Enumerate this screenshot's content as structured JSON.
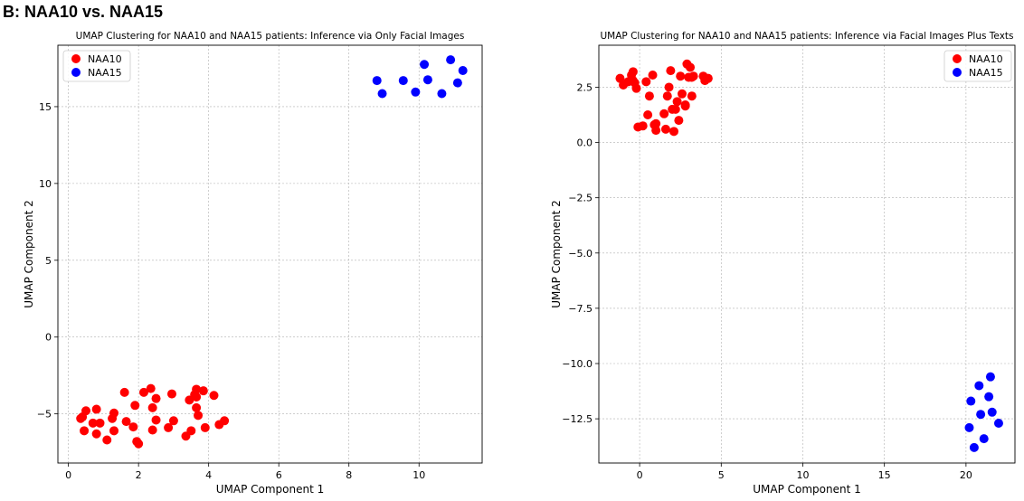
{
  "panel_label": "B: NAA10 vs. NAA15",
  "colors": {
    "NAA10": "#ff0000",
    "NAA15": "#0000ff",
    "grid": "#b0b0b0"
  },
  "chart_data": [
    {
      "type": "scatter",
      "title": "UMAP Clustering for NAA10 and NAA15 patients: Inference via Only Facial Images",
      "xlabel": "UMAP Component 1",
      "ylabel": "UMAP Component 2",
      "xlim": [
        -0.3,
        11.8
      ],
      "ylim": [
        -8.2,
        19.0
      ],
      "xticks": [
        0,
        2,
        4,
        6,
        8,
        10
      ],
      "yticks": [
        -5,
        0,
        5,
        10,
        15
      ],
      "grid": true,
      "legend": "top-left",
      "series": [
        {
          "name": "NAA10",
          "x": [
            0.35,
            0.4,
            0.5,
            0.45,
            0.7,
            0.8,
            0.9,
            0.8,
            1.1,
            1.3,
            1.25,
            1.3,
            1.6,
            1.65,
            1.9,
            1.85,
            1.95,
            2.0,
            2.15,
            2.35,
            2.4,
            2.4,
            2.5,
            2.5,
            2.85,
            2.95,
            3.0,
            3.35,
            3.45,
            3.5,
            3.6,
            3.65,
            3.7,
            3.65,
            3.65,
            3.85,
            3.9,
            4.15,
            4.3,
            4.45
          ],
          "y": [
            -5.3,
            -5.2,
            -4.8,
            -6.1,
            -5.6,
            -4.7,
            -5.6,
            -6.3,
            -6.7,
            -4.95,
            -5.3,
            -6.1,
            -3.6,
            -5.5,
            -4.45,
            -5.85,
            -6.8,
            -6.95,
            -3.6,
            -3.35,
            -4.6,
            -6.05,
            -5.4,
            -4.0,
            -5.9,
            -3.7,
            -5.45,
            -6.45,
            -4.1,
            -6.1,
            -3.75,
            -3.4,
            -5.1,
            -4.6,
            -3.9,
            -3.5,
            -5.9,
            -3.8,
            -5.7,
            -5.45
          ]
        },
        {
          "name": "NAA15",
          "x": [
            8.8,
            8.95,
            9.55,
            9.9,
            10.15,
            10.25,
            10.65,
            10.9,
            11.1,
            11.25
          ],
          "y": [
            16.7,
            15.85,
            16.7,
            15.95,
            17.75,
            16.75,
            15.85,
            18.05,
            16.55,
            17.35
          ]
        }
      ]
    },
    {
      "type": "scatter",
      "title": "UMAP Clustering for NAA10 and NAA15 patients: Inference via Facial Images Plus Texts",
      "xlabel": "UMAP Component 1",
      "ylabel": "UMAP Component 2",
      "xlim": [
        -2.5,
        23.0
      ],
      "ylim": [
        -14.5,
        4.4
      ],
      "xticks": [
        0,
        5,
        10,
        15,
        20
      ],
      "yticks": [
        -12.5,
        -10.0,
        -7.5,
        -5.0,
        -2.5,
        0.0,
        2.5
      ],
      "grid": true,
      "legend": "top-right",
      "series": [
        {
          "name": "NAA10",
          "x": [
            -1.2,
            -1.0,
            -0.7,
            -0.5,
            -0.4,
            -0.3,
            -0.4,
            -0.2,
            0.4,
            0.6,
            0.8,
            0.5,
            0.2,
            -0.1,
            0.9,
            1.0,
            1.0,
            1.5,
            1.6,
            1.7,
            1.8,
            1.9,
            2.0,
            2.1,
            2.2,
            2.3,
            2.4,
            2.5,
            2.6,
            2.8,
            2.9,
            3.0,
            3.1,
            3.2,
            3.2,
            3.3,
            3.9,
            4.0,
            4.2,
            2.8
          ],
          "y": [
            2.9,
            2.6,
            2.75,
            3.05,
            3.2,
            2.7,
            2.8,
            2.45,
            2.75,
            2.1,
            3.05,
            1.25,
            0.75,
            0.7,
            0.8,
            0.55,
            0.85,
            1.3,
            0.6,
            2.1,
            2.5,
            3.25,
            1.5,
            0.5,
            1.5,
            1.85,
            1.0,
            3.0,
            2.2,
            1.65,
            3.55,
            2.95,
            3.4,
            2.1,
            2.95,
            3.0,
            3.0,
            2.8,
            2.9,
            1.7
          ]
        },
        {
          "name": "NAA15",
          "x": [
            20.2,
            20.3,
            20.5,
            20.8,
            20.9,
            21.1,
            21.4,
            21.5,
            21.6,
            22.0
          ],
          "y": [
            -12.9,
            -11.7,
            -13.8,
            -11.0,
            -12.3,
            -13.4,
            -11.5,
            -10.6,
            -12.2,
            -12.7
          ]
        }
      ]
    }
  ]
}
